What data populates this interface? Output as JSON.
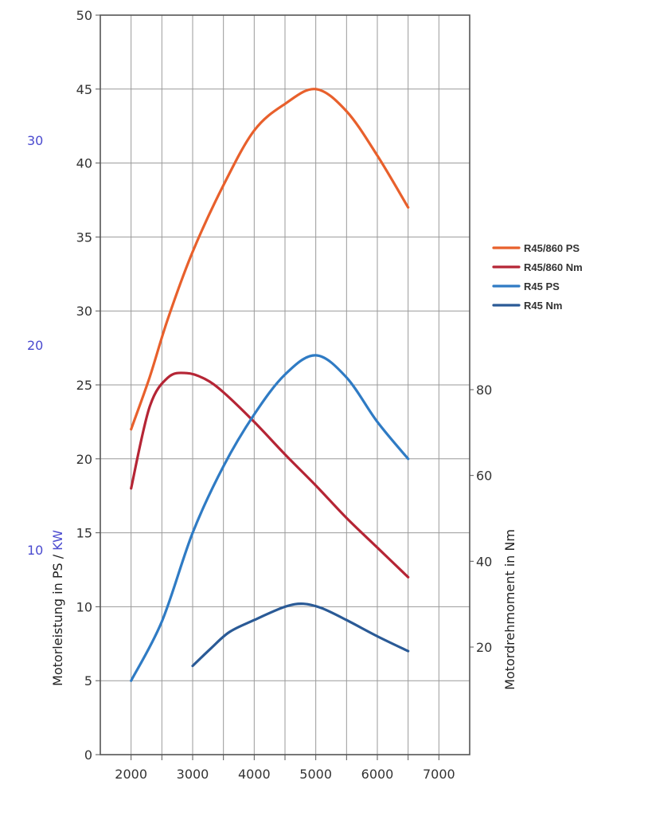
{
  "chart_data": {
    "type": "line",
    "xlim": [
      1500,
      7500
    ],
    "x_ticks": [
      2000,
      3000,
      4000,
      5000,
      6000,
      7000
    ],
    "left_axis": {
      "label_part1": "Motorleistung in PS / ",
      "label_part2": "KW",
      "ylim": [
        0,
        50
      ],
      "ticks": [
        0,
        5,
        10,
        15,
        20,
        25,
        30,
        35,
        40,
        45,
        50
      ]
    },
    "kw_axis": {
      "ticks": [
        10,
        20,
        30
      ],
      "color": "#4a4acf"
    },
    "right_axis": {
      "label": "Motordrehmoment in Nm",
      "ticks": [
        20,
        40,
        60,
        80
      ]
    },
    "grid": true,
    "legend_position": "right",
    "series": [
      {
        "name": "R45/860 PS",
        "color": "#e8602c",
        "points": [
          [
            2000,
            22
          ],
          [
            2300,
            25.5
          ],
          [
            2600,
            29.5
          ],
          [
            3000,
            34
          ],
          [
            3500,
            38.5
          ],
          [
            4000,
            42.2
          ],
          [
            4500,
            44
          ],
          [
            5000,
            45
          ],
          [
            5500,
            43.5
          ],
          [
            6000,
            40.5
          ],
          [
            6500,
            37
          ]
        ]
      },
      {
        "name": "R45/860 Nm",
        "color": "#b52535",
        "points": [
          [
            2000,
            18
          ],
          [
            2300,
            23.5
          ],
          [
            2600,
            25.5
          ],
          [
            2900,
            25.8
          ],
          [
            3200,
            25.4
          ],
          [
            3500,
            24.5
          ],
          [
            4000,
            22.5
          ],
          [
            4500,
            20.3
          ],
          [
            5000,
            18.2
          ],
          [
            5500,
            16
          ],
          [
            6000,
            14
          ],
          [
            6500,
            12
          ]
        ]
      },
      {
        "name": "R45 PS",
        "color": "#2f7bc4",
        "points": [
          [
            2000,
            5
          ],
          [
            2500,
            9
          ],
          [
            3000,
            15
          ],
          [
            3500,
            19.5
          ],
          [
            4000,
            23
          ],
          [
            4500,
            25.7
          ],
          [
            5000,
            27
          ],
          [
            5500,
            25.5
          ],
          [
            6000,
            22.5
          ],
          [
            6500,
            20
          ]
        ]
      },
      {
        "name": "R45 Nm",
        "color": "#2a5a96",
        "points": [
          [
            3000,
            6
          ],
          [
            3300,
            7.2
          ],
          [
            3600,
            8.3
          ],
          [
            4000,
            9.1
          ],
          [
            4500,
            10
          ],
          [
            4800,
            10.2
          ],
          [
            5100,
            9.9
          ],
          [
            5500,
            9.1
          ],
          [
            6000,
            8
          ],
          [
            6500,
            7
          ]
        ]
      }
    ]
  }
}
